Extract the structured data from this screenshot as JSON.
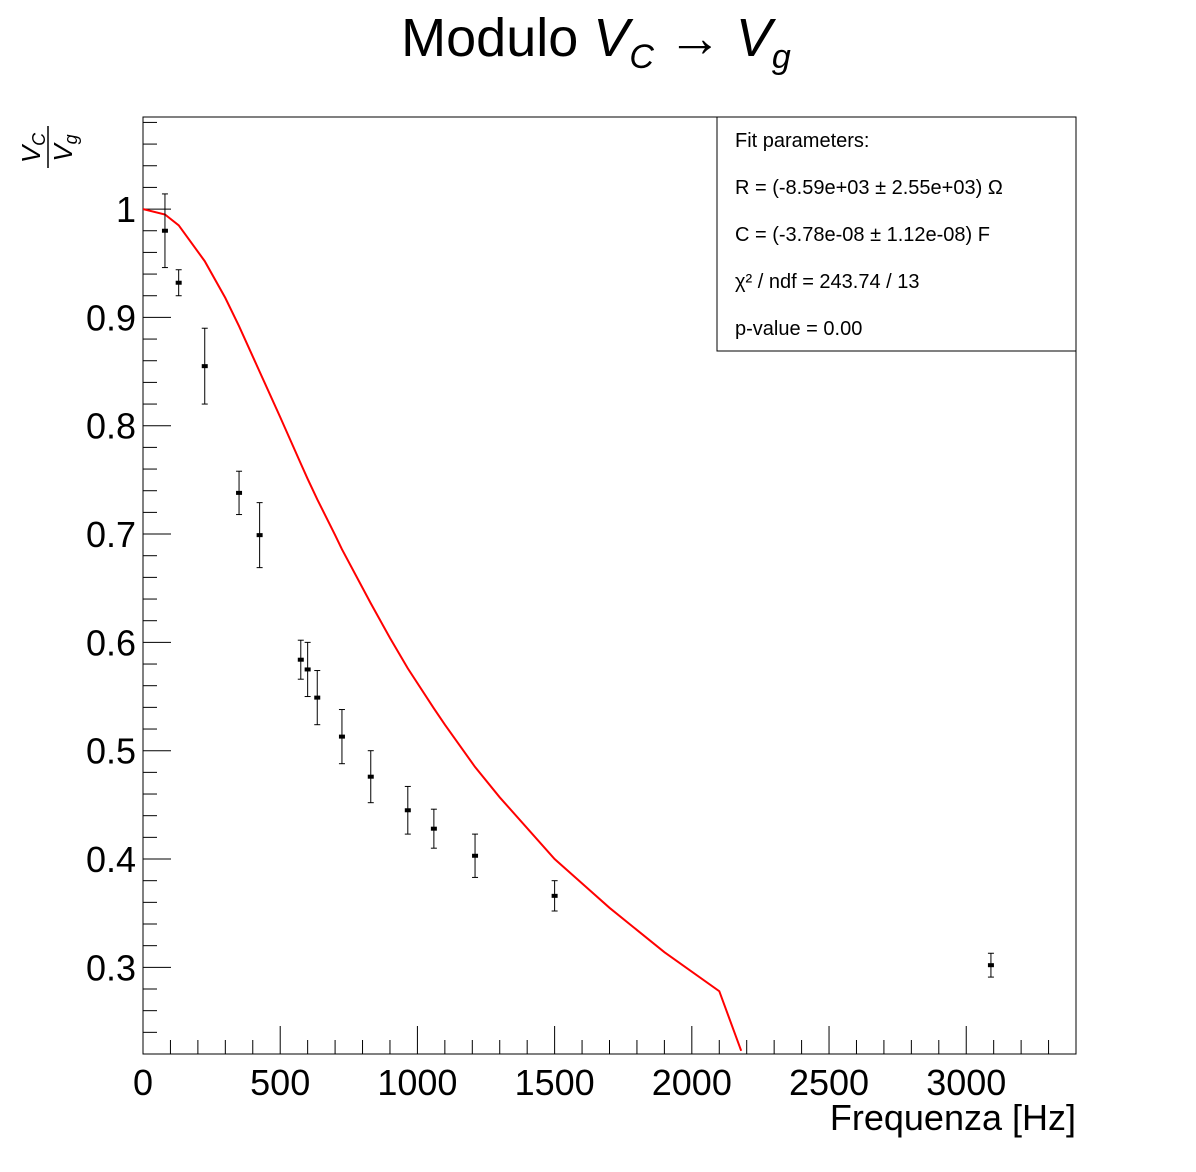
{
  "chart_data": {
    "type": "scatter",
    "title": {
      "prefix": "Modulo ",
      "v1_main": "V",
      "v1_sub": "C",
      "arrow": "→",
      "v2_main": "V",
      "v2_sub": "g"
    },
    "xlabel": "Frequenza [Hz]",
    "ylabel": {
      "num_main": "V",
      "num_sub": "C",
      "den_main": "V",
      "den_sub": "g"
    },
    "xlim": [
      0,
      3400
    ],
    "ylim": [
      0.22,
      1.085
    ],
    "x_ticks": [
      0,
      500,
      1000,
      1500,
      2000,
      2500,
      3000
    ],
    "x_tick_labels": [
      "0",
      "500",
      "1000",
      "1500",
      "2000",
      "2500",
      "3000"
    ],
    "y_ticks": [
      0.3,
      0.4,
      0.5,
      0.6,
      0.7,
      0.8,
      0.9,
      1.0
    ],
    "y_tick_labels": [
      "0.3",
      "0.4",
      "0.5",
      "0.6",
      "0.7",
      "0.8",
      "0.9",
      "1"
    ],
    "grid": false,
    "series": [
      {
        "kind": "points",
        "color": "#000000",
        "x": [
          80,
          130,
          225,
          350,
          425,
          575,
          600,
          635,
          725,
          830,
          965,
          1060,
          1210,
          1500,
          3090
        ],
        "y": [
          0.98,
          0.932,
          0.855,
          0.738,
          0.699,
          0.584,
          0.575,
          0.549,
          0.513,
          0.476,
          0.445,
          0.428,
          0.403,
          0.366,
          0.302
        ],
        "yerr": [
          0.034,
          0.012,
          0.035,
          0.02,
          0.03,
          0.018,
          0.025,
          0.025,
          0.025,
          0.024,
          0.022,
          0.018,
          0.02,
          0.014,
          0.011
        ]
      },
      {
        "kind": "fit",
        "color": "#ff0000",
        "x": [
          0,
          1,
          80,
          130,
          225,
          300,
          350,
          425,
          500,
          575,
          600,
          635,
          700,
          725,
          830,
          900,
          965,
          1060,
          1100,
          1210,
          1300,
          1500,
          1700,
          1900,
          2100,
          2180
        ],
        "y": [
          1.0,
          1.0,
          0.995,
          0.985,
          0.952,
          0.918,
          0.892,
          0.85,
          0.808,
          0.765,
          0.751,
          0.732,
          0.699,
          0.686,
          0.636,
          0.604,
          0.576,
          0.539,
          0.524,
          0.485,
          0.457,
          0.4,
          0.355,
          0.314,
          0.278,
          0.223
        ]
      }
    ],
    "legend": {
      "placement": "top-right",
      "lines": [
        "Fit parameters:",
        "R = (-8.59e+03 ± 2.55e+03) Ω",
        "C = (-3.78e-08 ± 1.12e-08) F",
        "χ² / ndf = 243.74 / 13",
        "p-value = 0.00"
      ]
    }
  }
}
